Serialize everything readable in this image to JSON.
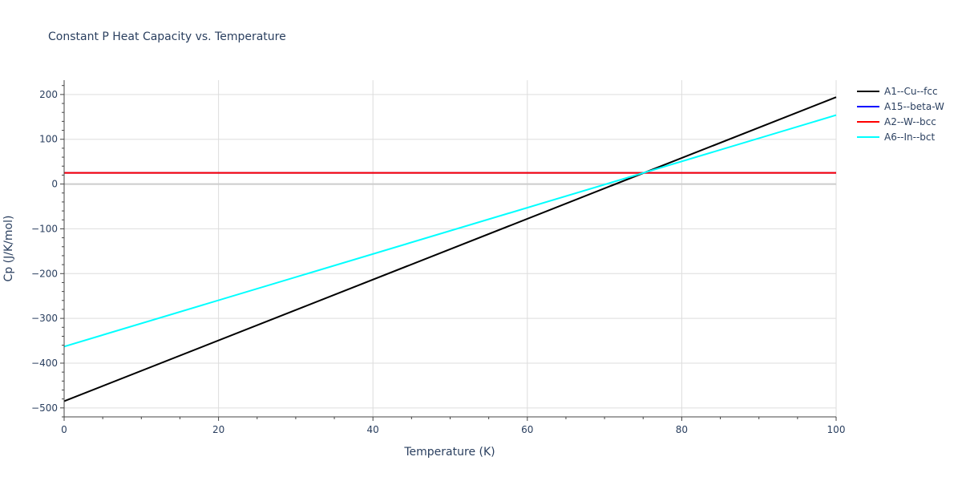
{
  "chart_data": {
    "type": "line",
    "title": "Constant P Heat Capacity vs. Temperature",
    "xlabel": "Temperature (K)",
    "ylabel": "Cp (J/K/mol)",
    "xlim": [
      0,
      100
    ],
    "ylim": [
      -520,
      232
    ],
    "x_ticks": [
      0,
      20,
      40,
      60,
      80,
      100
    ],
    "x_tick_labels": [
      "0",
      "20",
      "40",
      "60",
      "80",
      "100"
    ],
    "y_ticks": [
      200,
      100,
      0,
      -100,
      -200,
      -300,
      -400,
      -500
    ],
    "y_tick_labels": [
      "200",
      "100",
      "0",
      "−100",
      "−200",
      "−300",
      "−400",
      "−500"
    ],
    "grid": true,
    "legend_position": "right",
    "series": [
      {
        "name": "A1--Cu--fcc",
        "color": "#000000",
        "x": [
          0,
          100
        ],
        "y": [
          -485,
          194
        ]
      },
      {
        "name": "A15--beta-W",
        "color": "#0000ff",
        "x": [
          0,
          100
        ],
        "y": [
          25,
          25
        ]
      },
      {
        "name": "A2--W--bcc",
        "color": "#ff0000",
        "x": [
          0,
          100
        ],
        "y": [
          25,
          25
        ]
      },
      {
        "name": "A6--In--bct",
        "color": "#00ffff",
        "x": [
          0,
          100
        ],
        "y": [
          -363,
          154
        ]
      }
    ]
  }
}
